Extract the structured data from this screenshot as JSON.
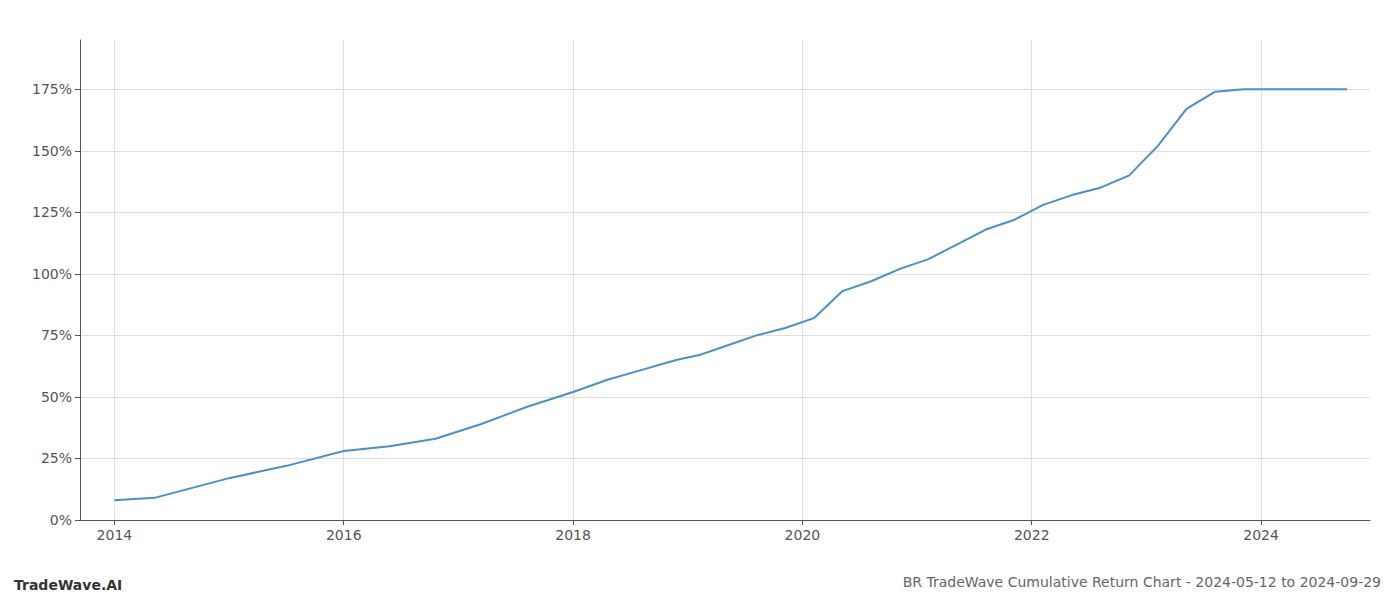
{
  "chart_data": {
    "type": "line",
    "title": "BR TradeWave Cumulative Return Chart - 2024-05-12 to 2024-09-29",
    "annotations": [
      "TradeWave.AI"
    ],
    "x": [
      2014.0,
      2014.35,
      2015.0,
      2015.5,
      2016.0,
      2016.4,
      2016.8,
      2017.2,
      2017.6,
      2018.0,
      2018.3,
      2018.6,
      2018.9,
      2019.1,
      2019.35,
      2019.6,
      2019.85,
      2020.1,
      2020.35,
      2020.6,
      2020.85,
      2021.1,
      2021.35,
      2021.6,
      2021.85,
      2022.1,
      2022.35,
      2022.6,
      2022.85,
      2023.1,
      2023.35,
      2023.6,
      2023.85,
      2024.0,
      2024.35,
      2024.75
    ],
    "values": [
      8,
      9,
      17,
      22,
      28,
      30,
      33,
      39,
      46,
      52,
      57,
      61,
      65,
      67,
      71,
      75,
      78,
      82,
      93,
      97,
      102,
      106,
      112,
      118,
      122,
      128,
      132,
      135,
      140,
      152,
      167,
      174,
      175,
      175,
      175,
      175
    ],
    "color": "#4a90c4",
    "xlim": [
      2013.7,
      2024.95
    ],
    "ylim": [
      0,
      195
    ],
    "xticks": [
      2014,
      2016,
      2018,
      2020,
      2022,
      2024
    ],
    "yticks": [
      {
        "value": 0,
        "label": "0%"
      },
      {
        "value": 25,
        "label": "25%"
      },
      {
        "value": 50,
        "label": "50%"
      },
      {
        "value": 75,
        "label": "75%"
      },
      {
        "value": 100,
        "label": "100%"
      },
      {
        "value": 125,
        "label": "125%"
      },
      {
        "value": 150,
        "label": "150%"
      },
      {
        "value": 175,
        "label": "175%"
      }
    ],
    "grid": true
  }
}
